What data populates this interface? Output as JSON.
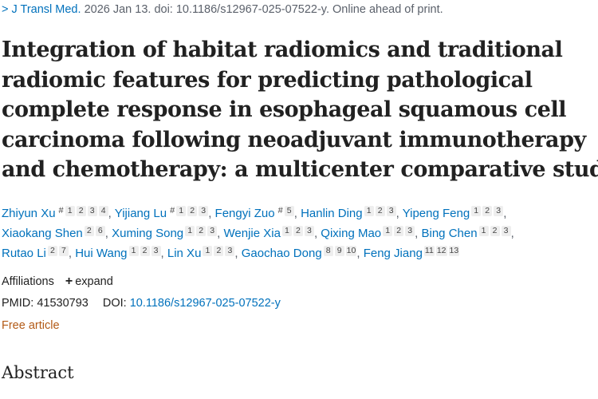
{
  "citation": {
    "journal": "J Transl Med.",
    "text": "2026 Jan 13. doi: 10.1186/s12967-025-07522-y. Online ahead of print."
  },
  "title_lines": [
    "Integration of habitat radiomics and traditional",
    "radiomic features for predicting pathological",
    "complete response in esophageal squamous cell",
    "carcinoma following neoadjuvant immunotherapy",
    "and chemotherapy: a multicenter comparative study"
  ],
  "authors": [
    {
      "name": "Zhiyun Xu",
      "hash": "#",
      "affs": [
        "1",
        "2",
        "3",
        "4"
      ]
    },
    {
      "name": "Yijiang Lu",
      "hash": "#",
      "affs": [
        "1",
        "2",
        "3"
      ]
    },
    {
      "name": "Fengyi Zuo",
      "hash": "#",
      "affs": [
        "5"
      ]
    },
    {
      "name": "Hanlin Ding",
      "hash": "",
      "affs": [
        "1",
        "2",
        "3"
      ]
    },
    {
      "name": "Yipeng Feng",
      "hash": "",
      "affs": [
        "1",
        "2",
        "3"
      ]
    },
    {
      "name": "Xiaokang Shen",
      "hash": "",
      "affs": [
        "2",
        "6"
      ]
    },
    {
      "name": "Xuming Song",
      "hash": "",
      "affs": [
        "1",
        "2",
        "3"
      ]
    },
    {
      "name": "Wenjie Xia",
      "hash": "",
      "affs": [
        "1",
        "2",
        "3"
      ]
    },
    {
      "name": "Qixing Mao",
      "hash": "",
      "affs": [
        "1",
        "2",
        "3"
      ]
    },
    {
      "name": "Bing Chen",
      "hash": "",
      "affs": [
        "1",
        "2",
        "3"
      ]
    },
    {
      "name": "Rutao Li",
      "hash": "",
      "affs": [
        "2",
        "7"
      ]
    },
    {
      "name": "Hui Wang",
      "hash": "",
      "affs": [
        "1",
        "2",
        "3"
      ]
    },
    {
      "name": "Lin Xu",
      "hash": "",
      "affs": [
        "1",
        "2",
        "3"
      ]
    },
    {
      "name": "Gaochao Dong",
      "hash": "",
      "affs": [
        "8",
        "9",
        "10"
      ]
    },
    {
      "name": "Feng Jiang",
      "hash": "",
      "affs": [
        "11",
        "12",
        "13"
      ]
    }
  ],
  "affiliations": {
    "label": "Affiliations",
    "plus": "+",
    "expand": "expand"
  },
  "pmid": {
    "label": "PMID:",
    "value": "41530793",
    "doi_label": "DOI:",
    "doi": "10.1186/s12967-025-07522-y"
  },
  "free_article": "Free article",
  "abstract_heading": "Abstract"
}
